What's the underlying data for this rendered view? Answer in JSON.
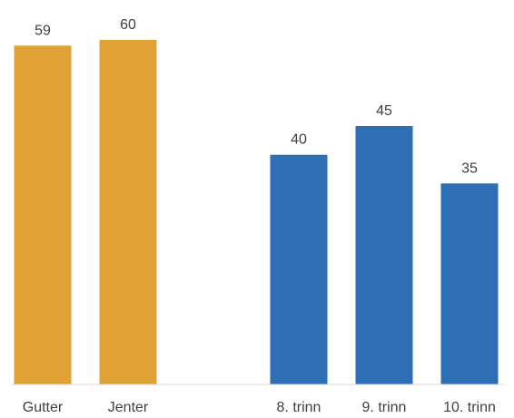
{
  "chart_data": {
    "type": "bar",
    "categories": [
      "Gutter",
      "Jenter",
      "",
      "8. trinn",
      "9. trinn",
      "10. trinn"
    ],
    "values": [
      59,
      60,
      null,
      40,
      45,
      35
    ],
    "colors": [
      "#E0A135",
      "#E0A135",
      null,
      "#2E6EB5",
      "#2E6EB5",
      "#2E6EB5"
    ],
    "title": "",
    "xlabel": "",
    "ylabel": "",
    "ylim": [
      0,
      60
    ],
    "grid": false,
    "legend": "none"
  }
}
